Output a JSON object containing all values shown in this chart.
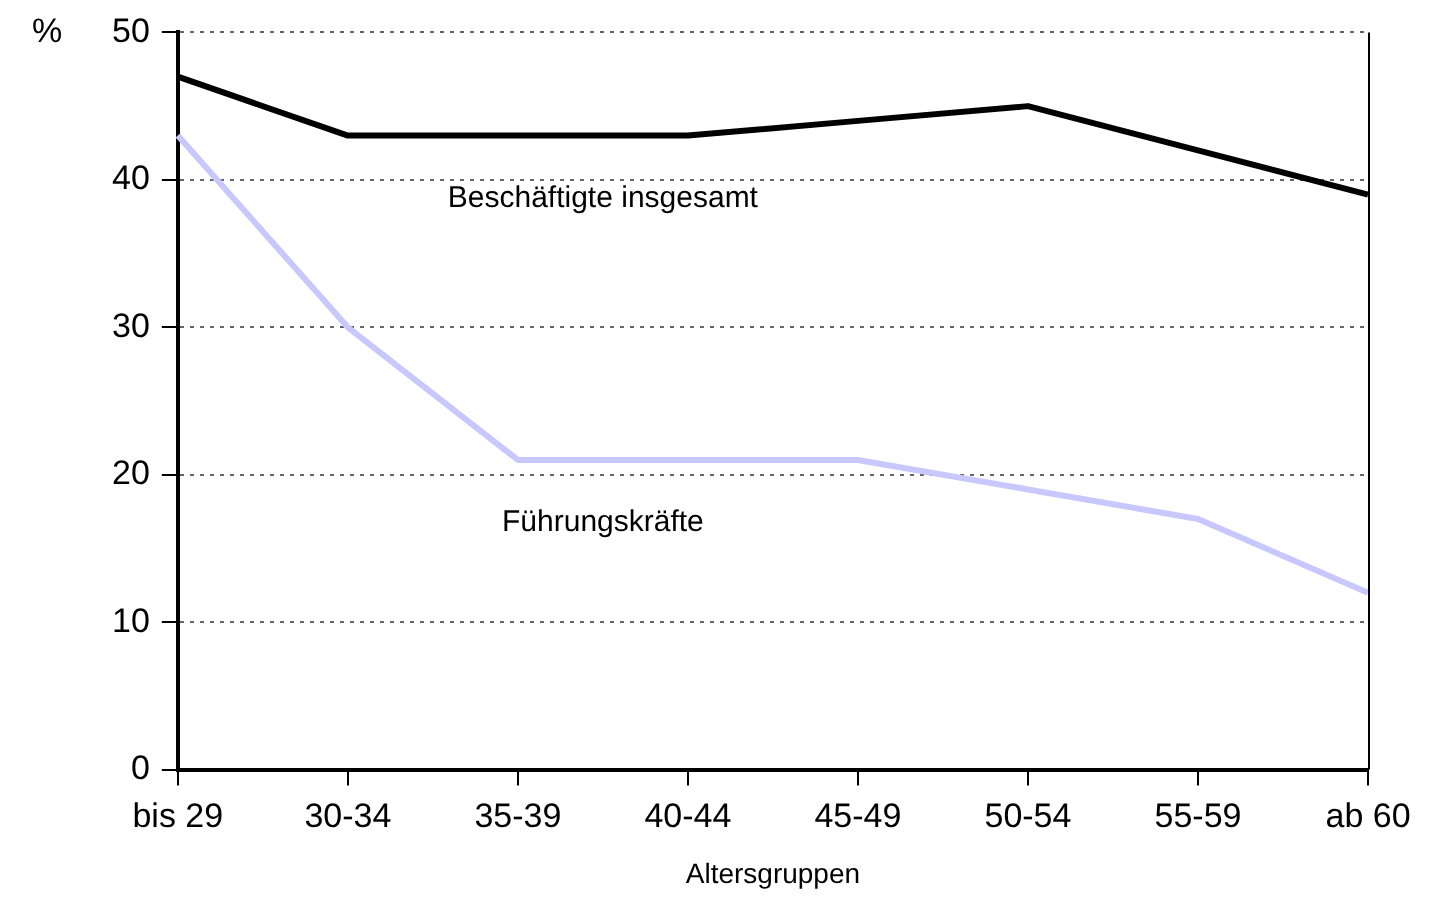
{
  "chart_data": {
    "type": "line",
    "xlabel": "Altersgruppen",
    "ylabel": "%",
    "categories": [
      "bis 29",
      "30-34",
      "35-39",
      "40-44",
      "45-49",
      "50-54",
      "55-59",
      "ab 60"
    ],
    "series": [
      {
        "name": "Beschäftigte insgesamt",
        "color": "#000000",
        "values": [
          47,
          43,
          43,
          43,
          44,
          45,
          42,
          39
        ]
      },
      {
        "name": "Führungskräfte",
        "color": "#c8c8ff",
        "values": [
          43,
          30,
          21,
          21,
          21,
          19,
          17,
          12
        ]
      }
    ],
    "ylim": [
      0,
      50
    ],
    "yticks": [
      0,
      10,
      20,
      30,
      40,
      50
    ],
    "grid": "y",
    "legend": false,
    "marker": "none",
    "line_style": "solid"
  }
}
